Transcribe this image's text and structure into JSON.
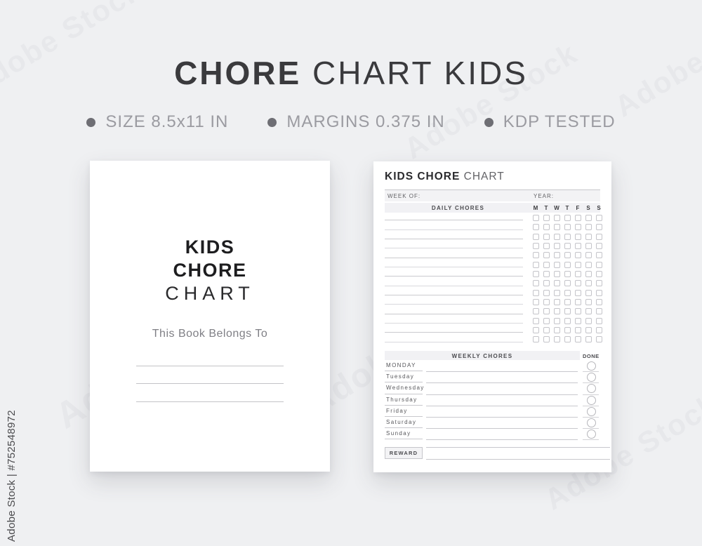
{
  "header": {
    "title_bold": "CHORE",
    "title_light": " CHART KIDS",
    "features": [
      {
        "label": "SIZE 8.5x11 IN"
      },
      {
        "label": "MARGINS 0.375 IN"
      },
      {
        "label": "KDP TESTED"
      }
    ]
  },
  "cover_page": {
    "title_line1": "KIDS",
    "title_line2": "CHORE",
    "title_line3": "CHART",
    "belongs_label": "This Book Belongs To",
    "signature_line_count": 3
  },
  "chart_page": {
    "title_bold": "KIDS CHORE",
    "title_light": " CHART",
    "week_of_label": "WEEK OF:",
    "year_label": "YEAR:",
    "daily_section": {
      "header": "DAILY CHORES",
      "day_initials": [
        "M",
        "T",
        "W",
        "T",
        "F",
        "S",
        "S"
      ],
      "row_count": 14
    },
    "weekly_section": {
      "header": "WEEKLY CHORES",
      "done_label": "DONE",
      "days": [
        "MONDAY",
        "Tuesday",
        "Wednesday",
        "Thursday",
        "Friday",
        "Saturday",
        "Sunday"
      ]
    },
    "reward_label": "REWARD"
  },
  "watermark": {
    "side_label": "Adobe Stock | #752548972",
    "tile_label": "Adobe Stock"
  },
  "colors": {
    "background": "#eff0f2",
    "page": "#ffffff",
    "title_text": "#3a3a3d",
    "feature_text": "#9b9ba1",
    "table_band": "#f1f1f4",
    "rule_line": "#c8c8cd"
  }
}
